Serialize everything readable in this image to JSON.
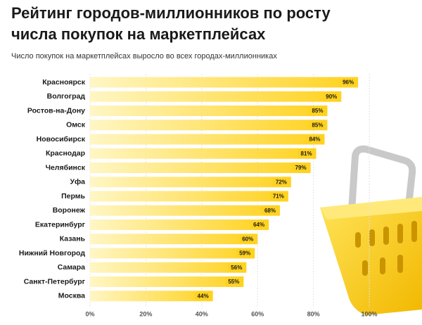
{
  "chart_data": {
    "type": "hbar",
    "title": [
      "Рейтинг городов-миллионников по росту",
      "числа покупок на маркетплейсах"
    ],
    "subtitle": "Число покупок на маркетплейсах выросло во всех городах-миллионниках",
    "categories": [
      "Красноярск",
      "Волгоград",
      "Ростов-на-Дону",
      "Омск",
      "Новосибирск",
      "Краснодар",
      "Челябинск",
      "Уфа",
      "Пермь",
      "Воронеж",
      "Екатеринбург",
      "Казань",
      "Нижний Новгород",
      "Самара",
      "Санкт-Петербург",
      "Москва"
    ],
    "values": [
      96,
      90,
      85,
      85,
      84,
      81,
      79,
      72,
      71,
      68,
      64,
      60,
      59,
      56,
      55,
      44
    ],
    "value_labels": [
      "96%",
      "90%",
      "85%",
      "85%",
      "84%",
      "81%",
      "79%",
      "72%",
      "71%",
      "68%",
      "64%",
      "60%",
      "59%",
      "56%",
      "55%",
      "44%"
    ],
    "color": "#ffd21f",
    "xlim": [
      0,
      100
    ],
    "xticks": [
      {
        "value": 0,
        "label": "0%"
      },
      {
        "value": 20,
        "label": "20%"
      },
      {
        "value": 40,
        "label": "40%"
      },
      {
        "value": 60,
        "label": "60%"
      },
      {
        "value": 80,
        "label": "80%"
      },
      {
        "value": 100,
        "label": "100%"
      }
    ],
    "grid": true
  }
}
